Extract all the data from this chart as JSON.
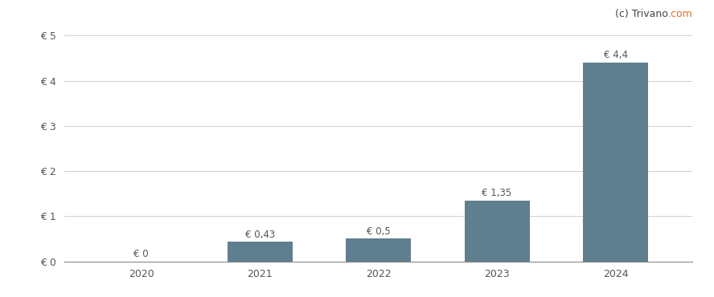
{
  "categories": [
    "2020",
    "2021",
    "2022",
    "2023",
    "2024"
  ],
  "values": [
    0,
    0.43,
    0.5,
    1.35,
    4.4
  ],
  "labels": [
    "€ 0",
    "€ 0,43",
    "€ 0,5",
    "€ 1,35",
    "€ 4,4"
  ],
  "bar_color": "#5f7f8f",
  "background_color": "#ffffff",
  "grid_color": "#d0d0d0",
  "ylim": [
    0,
    5
  ],
  "yticks": [
    0,
    1,
    2,
    3,
    4,
    5
  ],
  "ytick_labels": [
    "€ 0",
    "€ 1",
    "€ 2",
    "€ 3",
    "€ 4",
    "€ 5"
  ],
  "watermark_part1": "(c) Trivano",
  "watermark_part2": ".com",
  "watermark_color1": "#444444",
  "watermark_color2": "#e07020",
  "label_fontsize": 8.5,
  "tick_fontsize": 9,
  "watermark_fontsize": 9,
  "bar_width": 0.55,
  "xlim_left": -0.65,
  "xlim_right": 4.65
}
